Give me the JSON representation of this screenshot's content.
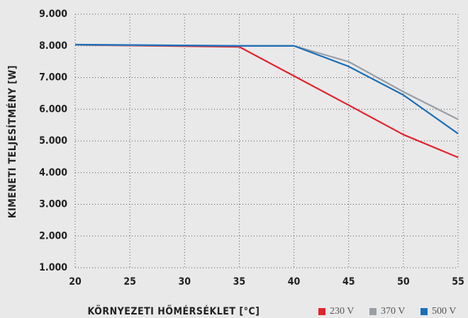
{
  "chart_data": {
    "type": "line",
    "x_label": "KÖRNYEZETI HŐMÉRSÉKLET [°C]",
    "y_label": "KIMENETI TELJESÍTMÉNY [W]",
    "x": [
      20,
      35,
      40,
      45,
      50,
      55
    ],
    "series": [
      {
        "name": "230 V",
        "color": "#e3242b",
        "values": [
          8030,
          7970,
          7050,
          6130,
          5200,
          4480
        ]
      },
      {
        "name": "370 V",
        "color": "#9a9ea5",
        "values": [
          8030,
          8000,
          8000,
          7500,
          6550,
          5680
        ]
      },
      {
        "name": "500 V",
        "color": "#1b6fb8",
        "values": [
          8040,
          8000,
          8000,
          7350,
          6450,
          5230
        ]
      }
    ],
    "xlim": [
      20,
      55
    ],
    "xticks": [
      20,
      25,
      30,
      35,
      40,
      45,
      50,
      55
    ],
    "ylim": [
      1000,
      9000
    ],
    "yticks": [
      {
        "value": 1000,
        "label": "1.000"
      },
      {
        "value": 2000,
        "label": "2.000"
      },
      {
        "value": 3000,
        "label": "3.000"
      },
      {
        "value": 4000,
        "label": "4.000"
      },
      {
        "value": 5000,
        "label": "5.000"
      },
      {
        "value": 6000,
        "label": "6.000"
      },
      {
        "value": 7000,
        "label": "7.000"
      },
      {
        "value": 8000,
        "label": "8.000"
      },
      {
        "value": 9000,
        "label": "9.000"
      }
    ],
    "grid": true,
    "legend": "bottom-right"
  }
}
